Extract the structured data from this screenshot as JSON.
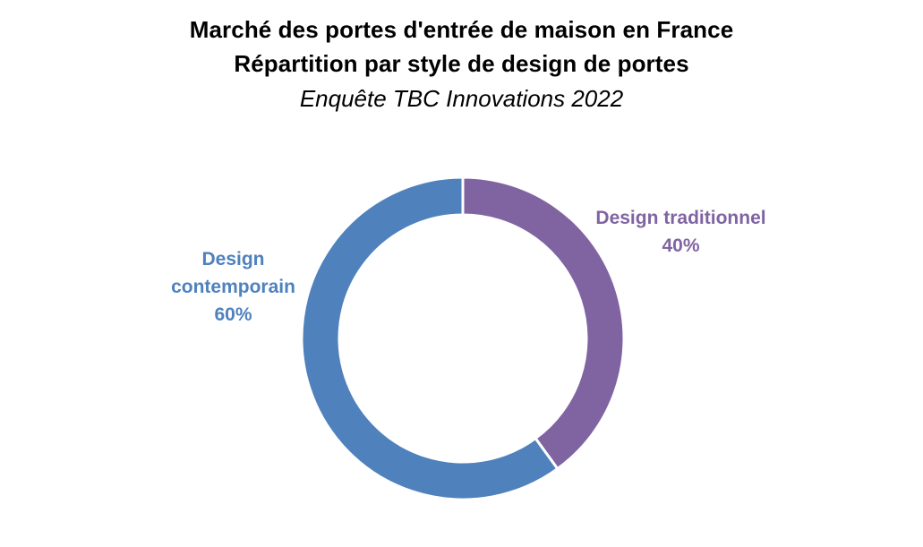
{
  "title": {
    "line1": "Marché des portes d'entrée de maison en France",
    "line2": "Répartition par style de design de portes",
    "subtitle": "Enquête TBC Innovations 2022"
  },
  "colors": {
    "contemporain": "#4F81BD",
    "traditionnel": "#8064A2",
    "separator": "#FFFFFF",
    "text": "#000000"
  },
  "labels": {
    "contemporain": {
      "line1": "Design",
      "line2": "contemporain",
      "value": "60%"
    },
    "traditionnel": {
      "line1": "Design traditionnel",
      "value": "40%"
    }
  },
  "chart_data": {
    "type": "pie",
    "variant": "doughnut",
    "title": "Marché des portes d'entrée de maison en France",
    "subtitle": "Répartition par style de design de portes",
    "caption": "Enquête TBC Innovations 2022",
    "categories": [
      "Design traditionnel",
      "Design contemporain"
    ],
    "values": [
      40,
      60
    ],
    "unit": "%",
    "start_angle": "top, clockwise",
    "colors": [
      "#8064A2",
      "#4F81BD"
    ],
    "legend": "none (data labels beside slices)"
  }
}
